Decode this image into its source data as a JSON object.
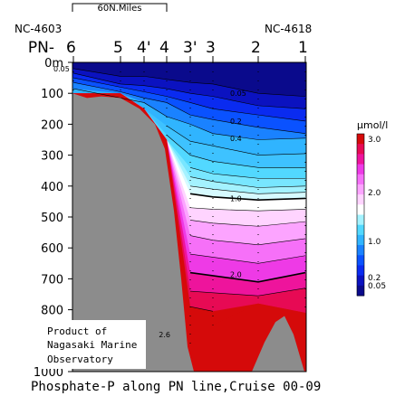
{
  "chart_data": {
    "type": "heatmap",
    "title": "Phosphate-P along PN line,Cruise 00-09",
    "xlabel": "",
    "ylabel": "",
    "ylim": [
      0,
      1000
    ],
    "y_ticks": [
      0,
      100,
      200,
      300,
      400,
      500,
      600,
      700,
      800,
      900,
      1000
    ],
    "y_unit": "m",
    "scale_bar_label": "60N.Miles",
    "station_prefix": "PN-",
    "left_station_code": "NC-4603",
    "right_station_code": "NC-4618",
    "stations": [
      {
        "label": "6",
        "x": 0
      },
      {
        "label": "5",
        "x": 1
      },
      {
        "label": "4'",
        "x": 1.5
      },
      {
        "label": "4",
        "x": 2
      },
      {
        "label": "3'",
        "x": 2.5
      },
      {
        "label": "3",
        "x": 3
      },
      {
        "label": "2",
        "x": 4
      },
      {
        "label": "1",
        "x": 5
      }
    ],
    "station_bottom_depths": [
      100,
      100,
      150,
      250,
      920,
      850,
      780,
      810
    ],
    "contour_levels": [
      0.05,
      0.1,
      0.2,
      0.3,
      0.4,
      0.5,
      0.6,
      0.7,
      0.8,
      0.9,
      1.0,
      1.2,
      1.4,
      1.6,
      1.8,
      2.0,
      2.2,
      2.4,
      2.6
    ],
    "contour_labels": [
      {
        "text": "0.05",
        "level": 0.05,
        "x": -0.45,
        "depth": 20
      },
      {
        "text": "0.05",
        "level": 0.05,
        "x": 5.3,
        "depth": 100
      },
      {
        "text": "0.2",
        "level": 0.2,
        "x": 5.3,
        "depth": 190
      },
      {
        "text": "0.4",
        "level": 0.4,
        "x": 5.3,
        "depth": 245
      },
      {
        "text": "1.0",
        "level": 1.0,
        "x": 5.3,
        "depth": 440
      },
      {
        "text": "2.0",
        "level": 2.0,
        "x": 5.3,
        "depth": 685
      },
      {
        "text": "2.6",
        "level": 2.6,
        "x": 2.65,
        "depth": 880
      }
    ],
    "contours": [
      {
        "level": 0.05,
        "depths": [
          20,
          45,
          45,
          55,
          65,
          70,
          100,
          110
        ]
      },
      {
        "level": 0.1,
        "depths": [
          35,
          70,
          75,
          85,
          100,
          110,
          140,
          150
        ]
      },
      {
        "level": 0.2,
        "depths": [
          50,
          80,
          95,
          110,
          130,
          150,
          170,
          190
        ]
      },
      {
        "level": 0.3,
        "depths": [
          65,
          95,
          115,
          130,
          170,
          185,
          210,
          230
        ]
      },
      {
        "level": 0.4,
        "depths": [
          85,
          110,
          130,
          175,
          200,
          230,
          250,
          245
        ]
      },
      {
        "level": 0.5,
        "depths": [
          null,
          null,
          150,
          205,
          255,
          270,
          300,
          295
        ]
      },
      {
        "level": 0.6,
        "depths": [
          null,
          null,
          null,
          235,
          300,
          320,
          340,
          340
        ]
      },
      {
        "level": 0.7,
        "depths": [
          null,
          null,
          null,
          null,
          340,
          360,
          375,
          375
        ]
      },
      {
        "level": 0.8,
        "depths": [
          null,
          null,
          null,
          null,
          370,
          385,
          405,
          400
        ]
      },
      {
        "level": 0.9,
        "depths": [
          null,
          null,
          null,
          null,
          400,
          410,
          425,
          420
        ]
      },
      {
        "level": 1.0,
        "depths": [
          null,
          null,
          null,
          null,
          425,
          435,
          445,
          440
        ]
      },
      {
        "level": 1.2,
        "depths": [
          null,
          null,
          null,
          null,
          470,
          475,
          480,
          475
        ]
      },
      {
        "level": 1.4,
        "depths": [
          null,
          null,
          null,
          null,
          510,
          520,
          530,
          515
        ]
      },
      {
        "level": 1.6,
        "depths": [
          null,
          null,
          null,
          null,
          560,
          575,
          590,
          570
        ]
      },
      {
        "level": 1.8,
        "depths": [
          null,
          null,
          null,
          null,
          620,
          630,
          650,
          625
        ]
      },
      {
        "level": 2.0,
        "depths": [
          null,
          null,
          null,
          null,
          680,
          690,
          710,
          680
        ]
      },
      {
        "level": 2.2,
        "depths": [
          null,
          null,
          null,
          null,
          740,
          745,
          755,
          730
        ]
      },
      {
        "level": 2.4,
        "depths": [
          null,
          null,
          null,
          null,
          790,
          805,
          null,
          null
        ]
      },
      {
        "level": 2.6,
        "depths": [
          null,
          null,
          null,
          null,
          860,
          null,
          null,
          null
        ]
      }
    ],
    "colorbar": {
      "unit": "μmol/l",
      "labels": [
        {
          "text": "3.0",
          "value": 3.0
        },
        {
          "text": "2.0",
          "value": 2.0
        },
        {
          "text": "1.0",
          "value": 1.0
        },
        {
          "text": "0.2",
          "value": 0.2
        },
        {
          "text": "0.05",
          "value": 0.05
        }
      ],
      "colors": [
        "#0a0a8c",
        "#0b12c0",
        "#0a2bf0",
        "#0a52ff",
        "#1a82ff",
        "#30b4ff",
        "#52d8ff",
        "#a4f2ff",
        "#ffffff",
        "#ffd4ff",
        "#fca4ff",
        "#f670f8",
        "#ee3ae6",
        "#ee149c",
        "#e70a54",
        "#d50a0a"
      ]
    },
    "grid": false,
    "legend": "right"
  },
  "credit": {
    "line1": "Product of",
    "line2": "Nagasaki Marine",
    "line3": "Observatory"
  },
  "colors": {
    "bathymetry": "#8c8c8c",
    "axis": "#000000",
    "background": "#ffffff"
  }
}
